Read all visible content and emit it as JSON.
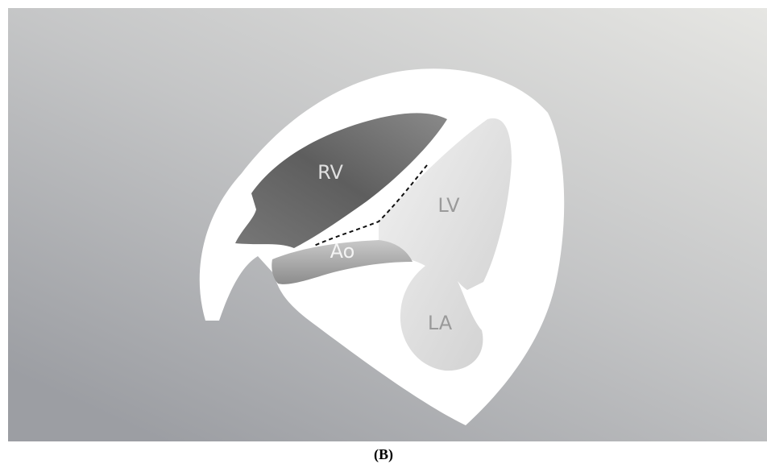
{
  "labels": {
    "rv": "RV",
    "lv": "LV",
    "ao": "Ao",
    "la": "LA"
  },
  "caption": "(B)"
}
